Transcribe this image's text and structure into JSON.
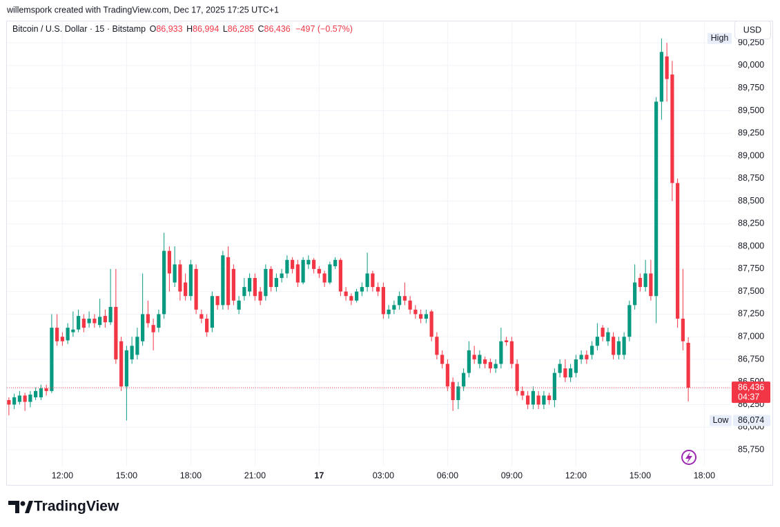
{
  "credit": "willemspork created with TradingView.com, Dec 17, 2025 17:25 UTC+1",
  "brand": "TradingView",
  "chart_data": {
    "type": "candlestick",
    "title": "Bitcoin / U.S. Dollar · 15 · Bitstamp",
    "ohlc_legend": [
      {
        "key": "O",
        "label": "86,933"
      },
      {
        "key": "H",
        "label": "86,994"
      },
      {
        "key": "L",
        "label": "86,285"
      },
      {
        "key": "C",
        "label": "86,436"
      }
    ],
    "change": "−497 (−0.57%)",
    "currency": "USD",
    "countdown": "04:37",
    "high_marker": {
      "text": "High"
    },
    "low_marker": {
      "text": "Low",
      "value": 86074,
      "value_label": "86,074"
    },
    "up_color": "#089981",
    "down_color": "#f23645",
    "grid": true,
    "categories": [
      null,
      null,
      null,
      null,
      null,
      null,
      null,
      null,
      null,
      null,
      "12:00",
      null,
      null,
      null,
      null,
      null,
      null,
      null,
      null,
      null,
      null,
      null,
      "15:00",
      null,
      null,
      null,
      null,
      null,
      null,
      null,
      null,
      null,
      null,
      null,
      "18:00",
      null,
      null,
      null,
      null,
      null,
      null,
      null,
      null,
      null,
      null,
      null,
      "21:00",
      null,
      null,
      null,
      null,
      null,
      null,
      null,
      null,
      null,
      null,
      null,
      "17",
      null,
      null,
      null,
      null,
      null,
      null,
      null,
      null,
      null,
      null,
      null,
      "03:00",
      null,
      null,
      null,
      null,
      null,
      null,
      null,
      null,
      null,
      null,
      null,
      "06:00",
      null,
      null,
      null,
      null,
      null,
      null,
      null,
      null,
      null,
      null,
      null,
      "09:00",
      null,
      null,
      null,
      null,
      null,
      null,
      null,
      null,
      null,
      null,
      null,
      "12:00",
      null,
      null,
      null,
      null,
      null,
      null,
      null,
      null,
      null,
      null,
      null,
      "15:00",
      null,
      null,
      null,
      null,
      null,
      null,
      null,
      null,
      null,
      null,
      null,
      "18:00"
    ],
    "series": [
      {
        "name": "Bitcoin / U.S. Dollar · 15 · Bitstamp",
        "open": [
          86300,
          86250,
          86280,
          86350,
          86280,
          86330,
          86330,
          86430,
          86400,
          87100,
          87000,
          86960,
          87050,
          87080,
          87200,
          87150,
          87200,
          87130,
          87230,
          87160,
          87330,
          86950,
          86450,
          86750,
          86800,
          86950,
          87250,
          87130,
          87100,
          87250,
          87950,
          87600,
          87800,
          87600,
          87450,
          87750,
          87250,
          87200,
          87100,
          87450,
          87350,
          87880,
          87750,
          87300,
          87450,
          87500,
          87650,
          87500,
          87450,
          87750,
          87550,
          87650,
          87700,
          87850,
          87800,
          87600,
          87800,
          87850,
          87750,
          87700,
          87600,
          87780,
          87850,
          87500,
          87450,
          87400,
          87500,
          87550,
          87700,
          87550,
          87550,
          87250,
          87300,
          87350,
          87450,
          87400,
          87300,
          87250,
          87200,
          87280,
          87000,
          86800,
          86700,
          86500,
          86300,
          86450,
          86600,
          86800,
          86700,
          86750,
          86720,
          86650,
          86700,
          86960,
          86950,
          86700,
          86400,
          86350,
          86250,
          86350,
          86250,
          86350,
          86300,
          86600,
          86650,
          86550,
          86600,
          86750,
          86800,
          86800,
          86900,
          87100,
          86950,
          87000,
          86800,
          86800,
          87000,
          87350,
          87650,
          87550,
          87700,
          87450,
          89600,
          90100,
          89900,
          88700,
          87200,
          86933,
          null,
          null,
          null
        ],
        "high": [
          86330,
          86370,
          86400,
          86380,
          86400,
          86440,
          86470,
          86470,
          87250,
          87250,
          87050,
          87150,
          87280,
          87300,
          87250,
          87280,
          87250,
          87420,
          87300,
          87750,
          87750,
          87000,
          86900,
          87000,
          87100,
          87700,
          87400,
          87200,
          87300,
          88150,
          88000,
          88000,
          87850,
          87700,
          87850,
          87800,
          87300,
          87250,
          87500,
          87450,
          87950,
          88000,
          87800,
          87450,
          87650,
          87700,
          87700,
          87550,
          87800,
          87780,
          87700,
          87750,
          87900,
          87880,
          87850,
          87880,
          87900,
          87870,
          87780,
          87730,
          87830,
          87880,
          87870,
          87550,
          87480,
          87530,
          87600,
          87930,
          87730,
          87600,
          87600,
          87350,
          87400,
          87500,
          87600,
          87450,
          87350,
          87300,
          87300,
          87300,
          87050,
          86850,
          86750,
          86550,
          86500,
          86650,
          86950,
          86900,
          86850,
          86780,
          86760,
          86750,
          87100,
          87000,
          87000,
          86750,
          86450,
          86400,
          86450,
          86400,
          86400,
          86380,
          86650,
          86750,
          86750,
          86700,
          86800,
          86850,
          86850,
          86950,
          87150,
          87130,
          87100,
          87050,
          87000,
          87050,
          87400,
          87800,
          87700,
          87850,
          87850,
          89650,
          90300,
          90250,
          90050,
          88750,
          87750,
          86994,
          null,
          null,
          null
        ],
        "low": [
          86130,
          86200,
          86250,
          86180,
          86220,
          86300,
          86300,
          86350,
          86380,
          86900,
          86900,
          86920,
          87000,
          87050,
          87050,
          87100,
          87100,
          87100,
          87100,
          87130,
          86700,
          86400,
          86074,
          86700,
          86750,
          86900,
          87100,
          86850,
          87050,
          87200,
          87500,
          87550,
          87400,
          87400,
          87400,
          87250,
          87150,
          87000,
          87050,
          87300,
          87300,
          87300,
          87350,
          87250,
          87400,
          87450,
          87400,
          87350,
          87400,
          87500,
          87500,
          87600,
          87650,
          87700,
          87550,
          87580,
          87750,
          87700,
          87650,
          87550,
          87580,
          87750,
          87450,
          87400,
          87350,
          87380,
          87450,
          87500,
          87500,
          87450,
          87200,
          87200,
          87250,
          87300,
          87350,
          87250,
          87200,
          87150,
          87150,
          86950,
          86750,
          86650,
          86400,
          86180,
          86200,
          86400,
          86550,
          86700,
          86650,
          86650,
          86600,
          86600,
          86650,
          86900,
          86650,
          86350,
          86300,
          86200,
          86200,
          86200,
          86200,
          86250,
          86220,
          86550,
          86500,
          86500,
          86550,
          86700,
          86700,
          86750,
          86850,
          86950,
          86900,
          86750,
          86750,
          86750,
          86950,
          87300,
          87500,
          87500,
          87400,
          87150,
          89400,
          89600,
          88500,
          87100,
          86850,
          86285,
          null,
          null,
          null
        ],
        "close": [
          86250,
          86330,
          86350,
          86280,
          86360,
          86400,
          86430,
          86400,
          87100,
          86950,
          86950,
          87100,
          87080,
          87230,
          87100,
          87200,
          87150,
          87220,
          87160,
          87330,
          86750,
          86450,
          86850,
          86900,
          87000,
          87250,
          87150,
          87050,
          87250,
          87950,
          87700,
          87800,
          87500,
          87450,
          87800,
          87300,
          87200,
          87050,
          87450,
          87350,
          87900,
          87350,
          87400,
          87400,
          87550,
          87650,
          87450,
          87400,
          87750,
          87550,
          87650,
          87700,
          87850,
          87750,
          87600,
          87850,
          87850,
          87750,
          87700,
          87600,
          87800,
          87850,
          87500,
          87450,
          87400,
          87500,
          87550,
          87700,
          87550,
          87500,
          87250,
          87300,
          87350,
          87450,
          87400,
          87300,
          87250,
          87200,
          87250,
          87000,
          86800,
          86700,
          86450,
          86300,
          86450,
          86600,
          86850,
          86750,
          86800,
          86700,
          86650,
          86700,
          86950,
          86940,
          86700,
          86400,
          86350,
          86250,
          86400,
          86250,
          86350,
          86300,
          86600,
          86700,
          86550,
          86650,
          86750,
          86800,
          86750,
          86900,
          87000,
          87000,
          87050,
          86800,
          86950,
          87000,
          87350,
          87600,
          87550,
          87700,
          87450,
          89600,
          90150,
          89850,
          88700,
          87200,
          86950,
          86436,
          null,
          null,
          null
        ]
      }
    ],
    "ylim": [
      85575,
      90480
    ],
    "yticks": [
      {
        "value": 85750,
        "label": "85,750"
      },
      {
        "value": 86000,
        "label": "86,000"
      },
      {
        "value": 86250,
        "label": "86,250"
      },
      {
        "value": 86500,
        "label": "86,500"
      },
      {
        "value": 86750,
        "label": "86,750"
      },
      {
        "value": 87000,
        "label": "87,000"
      },
      {
        "value": 87250,
        "label": "87,250"
      },
      {
        "value": 87500,
        "label": "87,500"
      },
      {
        "value": 87750,
        "label": "87,750"
      },
      {
        "value": 88000,
        "label": "88,000"
      },
      {
        "value": 88250,
        "label": "88,250"
      },
      {
        "value": 88500,
        "label": "88,500"
      },
      {
        "value": 88750,
        "label": "88,750"
      },
      {
        "value": 89000,
        "label": "89,000"
      },
      {
        "value": 89250,
        "label": "89,250"
      },
      {
        "value": 89500,
        "label": "89,500"
      },
      {
        "value": 89750,
        "label": "89,750"
      },
      {
        "value": 90000,
        "label": "90,000"
      },
      {
        "value": 90250,
        "label": "90,250"
      }
    ]
  }
}
